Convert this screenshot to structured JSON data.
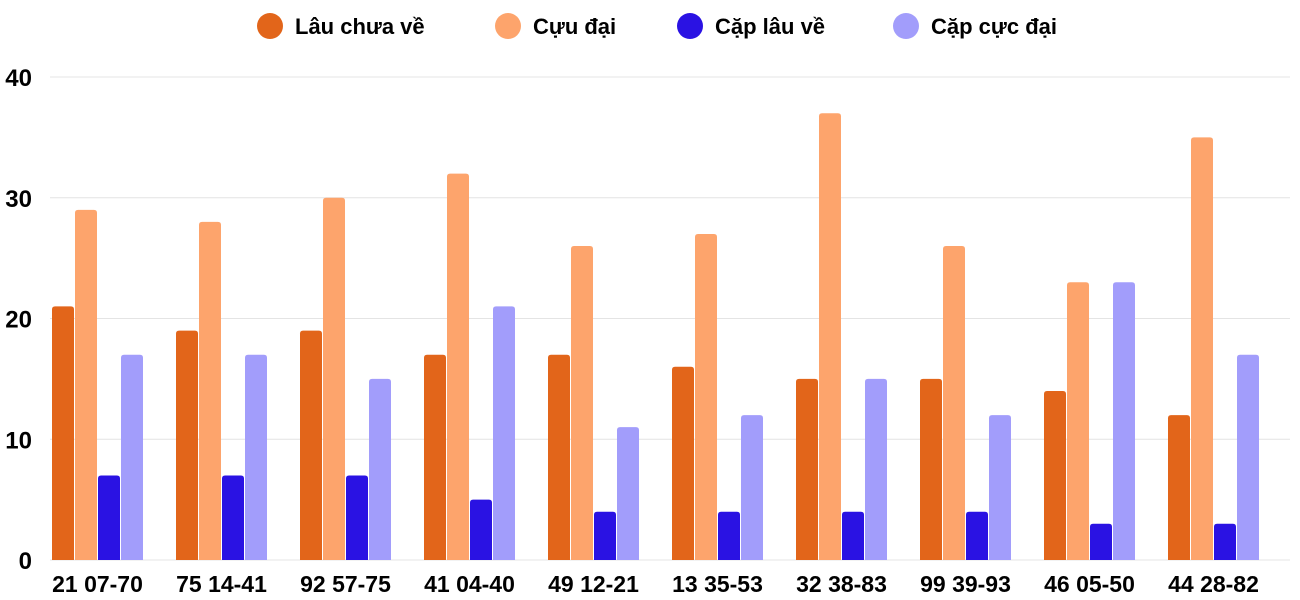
{
  "chart_data": {
    "type": "bar",
    "title": "",
    "xlabel": "",
    "ylabel": "",
    "ylim": [
      0,
      40
    ],
    "yticks": [
      "0",
      "10",
      "20",
      "30",
      "40"
    ],
    "grid": true,
    "legend_position": "top-center",
    "categories": [
      "21 07-70",
      "75 14-41",
      "92 57-75",
      "41 04-40",
      "49 12-21",
      "13 35-53",
      "32 38-83",
      "99 39-93",
      "46 05-50",
      "44 28-82"
    ],
    "series": [
      {
        "name": "Lâu chưa về",
        "color": "#e2651a",
        "values": [
          21,
          19,
          19,
          17,
          17,
          16,
          15,
          15,
          14,
          12
        ]
      },
      {
        "name": "Cựu đại",
        "color": "#fda46c",
        "values": [
          29,
          28,
          30,
          32,
          26,
          27,
          37,
          26,
          23,
          35
        ]
      },
      {
        "name": "Cặp lâu về",
        "color": "#2a12e3",
        "values": [
          7,
          7,
          7,
          5,
          4,
          4,
          4,
          4,
          3,
          3
        ]
      },
      {
        "name": "Cặp cực đại",
        "color": "#a29dfb",
        "values": [
          17,
          17,
          15,
          21,
          11,
          12,
          15,
          12,
          23,
          17
        ]
      }
    ]
  }
}
